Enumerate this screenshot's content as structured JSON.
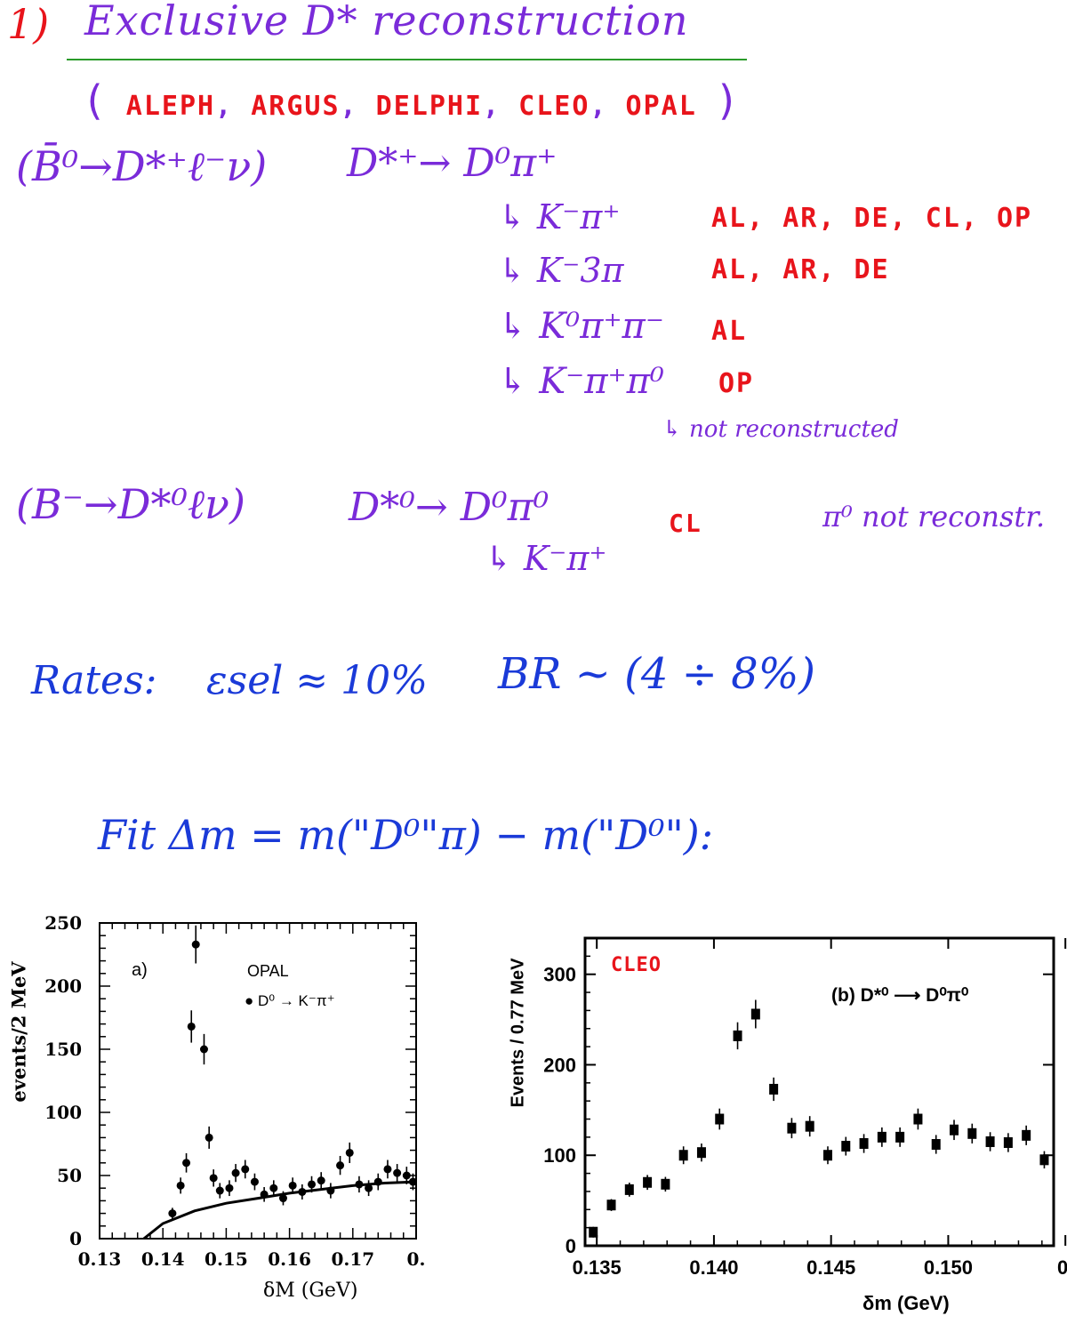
{
  "header": {
    "number": "1)",
    "title": "Exclusive D* reconstruction",
    "experiments": {
      "open": "(",
      "items": [
        {
          "name": "ALEPH",
          "color": "#e8141b"
        },
        {
          "name": "ARGUS",
          "color": "#e8141b"
        },
        {
          "name": "DELPHI",
          "color": "#e8141b"
        },
        {
          "name": "CLEO",
          "color": "#e8141b"
        },
        {
          "name": "OPAL",
          "color": "#e8141b"
        }
      ],
      "close": ")"
    }
  },
  "decay1": {
    "process": "(B̄⁰→D*⁺ℓ⁻ν)",
    "chain": "D*⁺→ D⁰π⁺",
    "modes": [
      {
        "mode": "↳ K⁻π⁺",
        "experiments": "AL, AR, DE, CL, OP"
      },
      {
        "mode": "↳ K⁻3π",
        "experiments": "AL, AR, DE"
      },
      {
        "mode": "↳ K⁰π⁺π⁻",
        "experiments": "AL"
      },
      {
        "mode": "↳ K⁻π⁺π⁰",
        "experiments": "OP"
      }
    ],
    "note": "↳ not reconstructed"
  },
  "decay2": {
    "process": "(B⁻→D*⁰ℓν)",
    "chain": "D*⁰→ D⁰π⁰",
    "experiment": "CL",
    "sub": "↳ K⁻π⁺",
    "note": "π⁰ not reconstr."
  },
  "rates": {
    "label": "Rates:",
    "eff": "εsel ≈ 10%",
    "br": "BR ~ (4 ÷ 8%)"
  },
  "fit": {
    "text": "Fit Δm = m(\"D⁰\"π) − m(\"D⁰\"):"
  },
  "left_plot": {
    "panel_label": "a)",
    "experiment": "OPAL",
    "legend": "D⁰ → K⁻π⁺",
    "ylabel": "events/2 MeV",
    "xlabel": "δM (GeV)",
    "xticks": [
      "0.13",
      "0.14",
      "0.15",
      "0.16",
      "0.17",
      "0."
    ],
    "yticks": [
      "0",
      "50",
      "100",
      "150",
      "200",
      "250"
    ]
  },
  "right_plot": {
    "experiment": "CLEO",
    "legend": "(b) D*⁰ ⟶ D⁰π⁰",
    "ylabel": "Events / 0.77 MeV",
    "xlabel": "δm (GeV)",
    "xticks": [
      "0.135",
      "0.140",
      "0.145",
      "0.150",
      "0."
    ],
    "yticks": [
      "0",
      "100",
      "200",
      "300"
    ]
  },
  "chart_data": [
    {
      "type": "scatter",
      "title": "OPAL",
      "xlabel": "δM (GeV)",
      "ylabel": "events/2 MeV",
      "xlim": [
        0.13,
        0.18
      ],
      "ylim": [
        0,
        250
      ],
      "series": [
        {
          "name": "D⁰ → K⁻π⁺",
          "x": [
            0.1415,
            0.1428,
            0.1437,
            0.1445,
            0.1452,
            0.1465,
            0.1473,
            0.148,
            0.149,
            0.1505,
            0.1515,
            0.153,
            0.1545,
            0.156,
            0.1575,
            0.159,
            0.1605,
            0.162,
            0.1635,
            0.165,
            0.1665,
            0.168,
            0.1695,
            0.171,
            0.1725,
            0.174,
            0.1755,
            0.177,
            0.1785,
            0.1795
          ],
          "y": [
            20,
            42,
            60,
            168,
            233,
            150,
            80,
            48,
            38,
            40,
            52,
            55,
            45,
            35,
            40,
            32,
            42,
            37,
            43,
            46,
            38,
            58,
            68,
            43,
            40,
            45,
            55,
            52,
            50,
            45
          ]
        }
      ],
      "fit_curve": {
        "x": [
          0.137,
          0.14,
          0.145,
          0.15,
          0.155,
          0.16,
          0.165,
          0.17,
          0.175,
          0.18
        ],
        "y": [
          0,
          12,
          22,
          28,
          32,
          36,
          39,
          42,
          44,
          45
        ]
      }
    },
    {
      "type": "scatter",
      "title": "CLEO",
      "xlabel": "δm (GeV)",
      "ylabel": "Events / 0.77 MeV",
      "xlim": [
        0.1345,
        0.1545
      ],
      "ylim": [
        0,
        340
      ],
      "series": [
        {
          "name": "(b) D*⁰ → D⁰π⁰",
          "x": [
            0.13485,
            0.13562,
            0.13639,
            0.13716,
            0.13793,
            0.1387,
            0.13947,
            0.14024,
            0.14101,
            0.14178,
            0.14255,
            0.14332,
            0.14409,
            0.14486,
            0.14563,
            0.1464,
            0.14717,
            0.14794,
            0.14871,
            0.14948,
            0.15025,
            0.15102,
            0.15179,
            0.15256,
            0.15333,
            0.1541
          ],
          "y": [
            15,
            45,
            62,
            70,
            68,
            100,
            103,
            140,
            232,
            256,
            173,
            130,
            132,
            100,
            110,
            113,
            120,
            120,
            140,
            112,
            128,
            124,
            115,
            114,
            122,
            95
          ]
        }
      ]
    }
  ]
}
